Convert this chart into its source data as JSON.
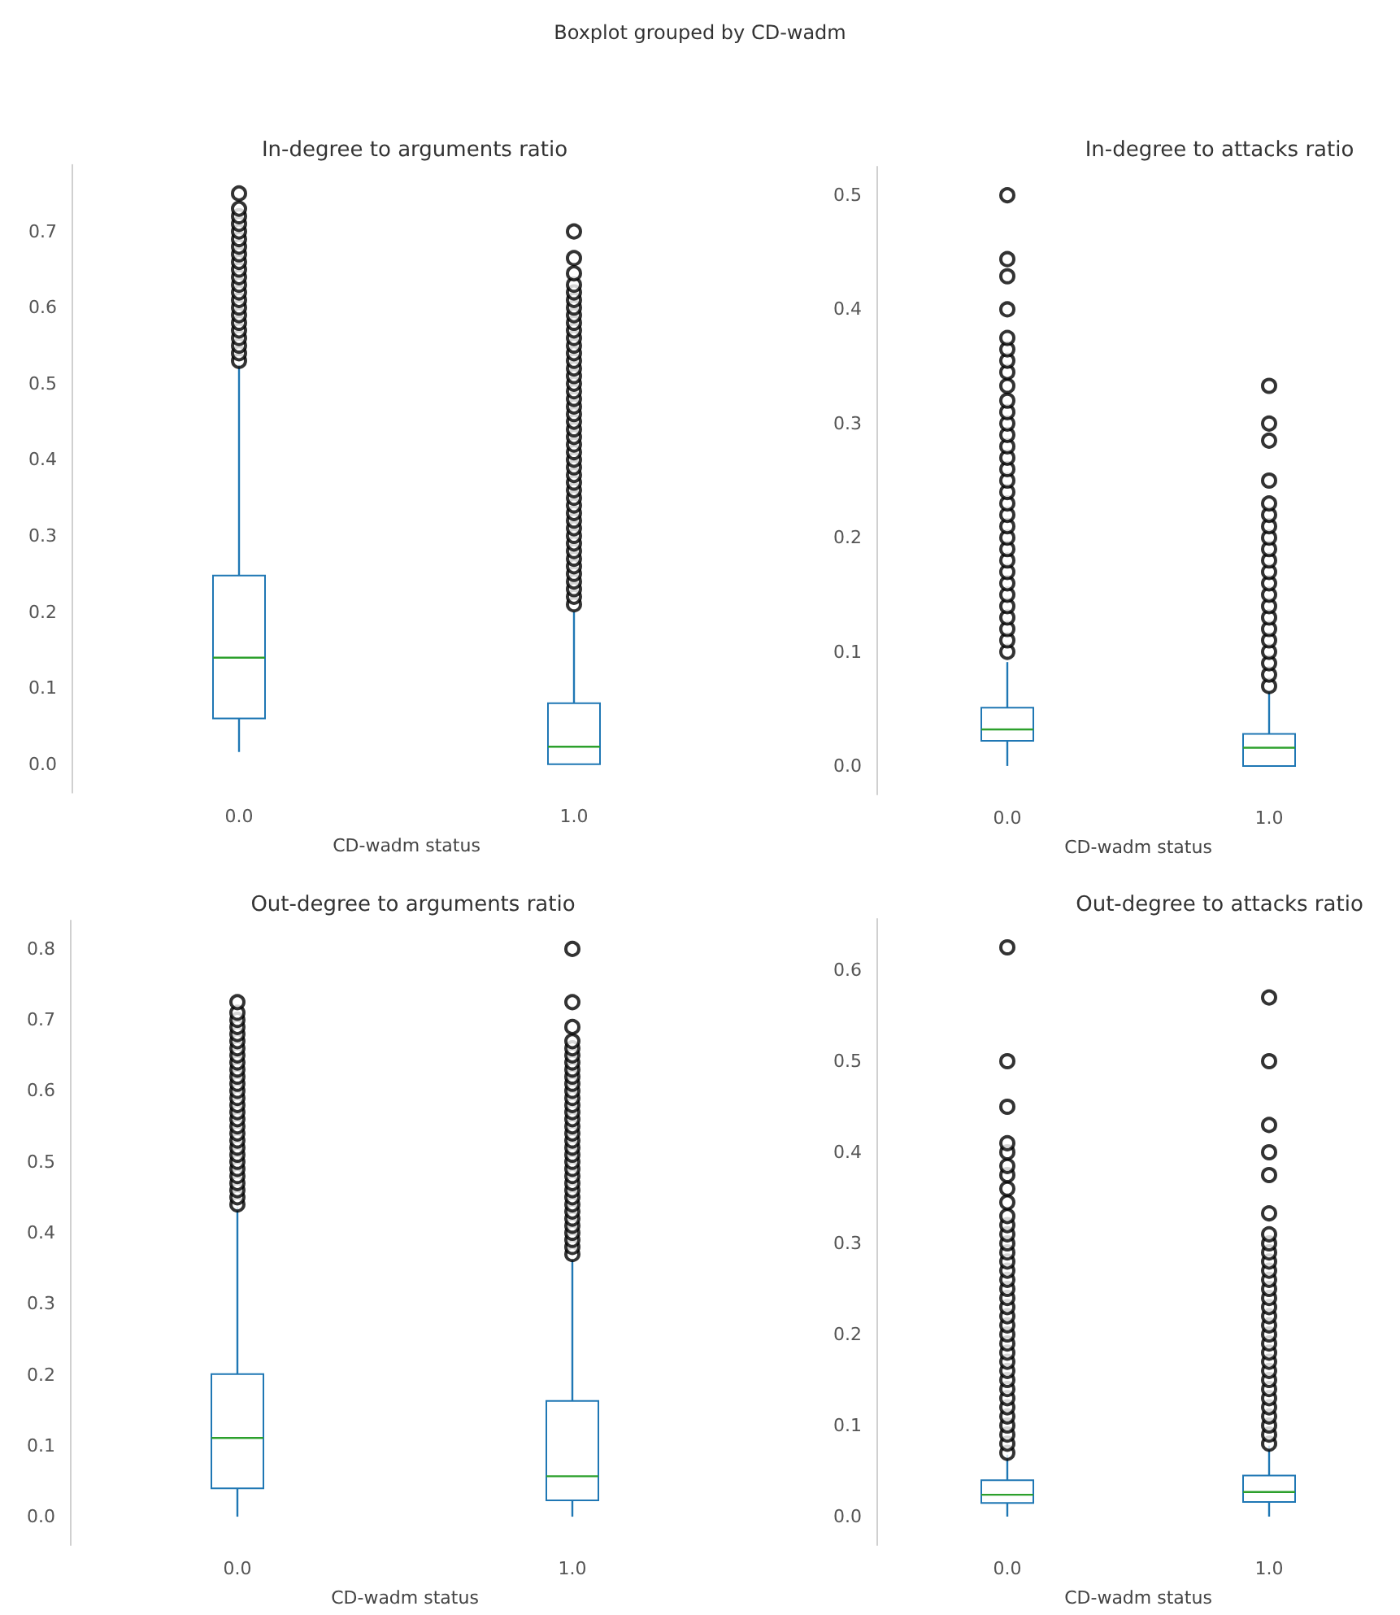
{
  "chart_data": [
    {
      "type": "other",
      "title": "Boxplot grouped by CD-wadm"
    },
    {
      "type": "box",
      "title": "In-degree to arguments ratio",
      "xlabel": "CD-wadm status",
      "categories": [
        "0.0",
        "1.0"
      ],
      "ylim": [
        -0.0375,
        0.7875
      ],
      "yticks": [
        {
          "value": 0,
          "label": "0.0"
        },
        {
          "value": 0.1,
          "label": "0.1"
        },
        {
          "value": 0.2,
          "label": "0.2"
        },
        {
          "value": 0.3,
          "label": "0.3"
        },
        {
          "value": 0.4,
          "label": "0.4"
        },
        {
          "value": 0.5,
          "label": "0.5"
        },
        {
          "value": 0.6,
          "label": "0.6"
        },
        {
          "value": 0.7,
          "label": "0.7"
        }
      ],
      "grid": false,
      "series": [
        {
          "color": "#1f77b4",
          "boxes": [
            {
              "low": 0.016,
              "q1": 0.06,
              "median": 0.14,
              "q3": 0.248,
              "high": 0.525,
              "outliers": [
                0.53,
                0.54,
                0.55,
                0.56,
                0.57,
                0.58,
                0.59,
                0.6,
                0.61,
                0.62,
                0.63,
                0.64,
                0.65,
                0.66,
                0.67,
                0.68,
                0.69,
                0.7,
                0.71,
                0.72,
                0.73,
                0.75
              ]
            },
            {
              "low": 0,
              "q1": 0,
              "median": 0.023,
              "q3": 0.08,
              "high": 0.2,
              "outliers": [
                0.21,
                0.22,
                0.23,
                0.24,
                0.25,
                0.26,
                0.27,
                0.28,
                0.29,
                0.3,
                0.31,
                0.32,
                0.33,
                0.34,
                0.35,
                0.36,
                0.37,
                0.38,
                0.39,
                0.4,
                0.41,
                0.42,
                0.43,
                0.44,
                0.45,
                0.46,
                0.47,
                0.48,
                0.49,
                0.5,
                0.51,
                0.52,
                0.53,
                0.54,
                0.55,
                0.56,
                0.57,
                0.58,
                0.59,
                0.6,
                0.61,
                0.62,
                0.63,
                0.645,
                0.665,
                0.7
              ]
            }
          ]
        }
      ]
    },
    {
      "type": "box",
      "title": "In-degree to attacks ratio",
      "xlabel": "CD-wadm status",
      "categories": [
        "0.0",
        "1.0"
      ],
      "ylim": [
        -0.025,
        0.525
      ],
      "yticks": [
        {
          "value": 0,
          "label": "0.0"
        },
        {
          "value": 0.1,
          "label": "0.1"
        },
        {
          "value": 0.2,
          "label": "0.2"
        },
        {
          "value": 0.3,
          "label": "0.3"
        },
        {
          "value": 0.4,
          "label": "0.4"
        },
        {
          "value": 0.5,
          "label": "0.5"
        }
      ],
      "grid": false,
      "series": [
        {
          "color": "#1f77b4",
          "boxes": [
            {
              "low": 0,
              "q1": 0.022,
              "median": 0.032,
              "q3": 0.051,
              "high": 0.091,
              "outliers": [
                0.1,
                0.11,
                0.12,
                0.13,
                0.14,
                0.15,
                0.16,
                0.17,
                0.18,
                0.19,
                0.2,
                0.21,
                0.22,
                0.23,
                0.24,
                0.25,
                0.26,
                0.27,
                0.28,
                0.29,
                0.3,
                0.31,
                0.32,
                0.333,
                0.345,
                0.355,
                0.365,
                0.375,
                0.4,
                0.429,
                0.444,
                0.5
              ]
            },
            {
              "low": 0,
              "q1": 0,
              "median": 0.016,
              "q3": 0.028,
              "high": 0.066,
              "outliers": [
                0.07,
                0.08,
                0.09,
                0.1,
                0.11,
                0.12,
                0.13,
                0.14,
                0.15,
                0.16,
                0.17,
                0.18,
                0.19,
                0.2,
                0.21,
                0.22,
                0.23,
                0.25,
                0.285,
                0.3,
                0.333
              ]
            }
          ]
        }
      ]
    },
    {
      "type": "box",
      "title": "Out-degree to arguments ratio",
      "xlabel": "CD-wadm status",
      "categories": [
        "0.0",
        "1.0"
      ],
      "ylim": [
        -0.04,
        0.84
      ],
      "yticks": [
        {
          "value": 0,
          "label": "0.0"
        },
        {
          "value": 0.1,
          "label": "0.1"
        },
        {
          "value": 0.2,
          "label": "0.2"
        },
        {
          "value": 0.3,
          "label": "0.3"
        },
        {
          "value": 0.4,
          "label": "0.4"
        },
        {
          "value": 0.5,
          "label": "0.5"
        },
        {
          "value": 0.6,
          "label": "0.6"
        },
        {
          "value": 0.7,
          "label": "0.7"
        },
        {
          "value": 0.8,
          "label": "0.8"
        }
      ],
      "grid": false,
      "series": [
        {
          "color": "#1f77b4",
          "boxes": [
            {
              "low": 0,
              "q1": 0.04,
              "median": 0.111,
              "q3": 0.201,
              "high": 0.436,
              "outliers": [
                0.44,
                0.45,
                0.46,
                0.47,
                0.48,
                0.49,
                0.5,
                0.51,
                0.52,
                0.53,
                0.54,
                0.55,
                0.56,
                0.57,
                0.58,
                0.59,
                0.6,
                0.61,
                0.62,
                0.63,
                0.64,
                0.65,
                0.66,
                0.67,
                0.68,
                0.69,
                0.7,
                0.71,
                0.725
              ]
            },
            {
              "low": 0,
              "q1": 0.023,
              "median": 0.057,
              "q3": 0.163,
              "high": 0.362,
              "outliers": [
                0.37,
                0.38,
                0.39,
                0.4,
                0.41,
                0.42,
                0.43,
                0.44,
                0.45,
                0.46,
                0.47,
                0.48,
                0.49,
                0.5,
                0.51,
                0.52,
                0.53,
                0.54,
                0.55,
                0.56,
                0.57,
                0.58,
                0.59,
                0.6,
                0.61,
                0.62,
                0.63,
                0.64,
                0.65,
                0.66,
                0.67,
                0.69,
                0.725,
                0.8
              ]
            }
          ]
        }
      ]
    },
    {
      "type": "box",
      "title": "Out-degree to attacks ratio",
      "xlabel": "CD-wadm status",
      "categories": [
        "0.0",
        "1.0"
      ],
      "ylim": [
        -0.03125,
        0.65625
      ],
      "yticks": [
        {
          "value": 0,
          "label": "0.0"
        },
        {
          "value": 0.1,
          "label": "0.1"
        },
        {
          "value": 0.2,
          "label": "0.2"
        },
        {
          "value": 0.3,
          "label": "0.3"
        },
        {
          "value": 0.4,
          "label": "0.4"
        },
        {
          "value": 0.5,
          "label": "0.5"
        },
        {
          "value": 0.6,
          "label": "0.6"
        }
      ],
      "grid": false,
      "series": [
        {
          "color": "#1f77b4",
          "boxes": [
            {
              "low": 0,
              "q1": 0.015,
              "median": 0.024,
              "q3": 0.04,
              "high": 0.068,
              "outliers": [
                0.07,
                0.08,
                0.09,
                0.1,
                0.11,
                0.12,
                0.13,
                0.14,
                0.15,
                0.16,
                0.17,
                0.18,
                0.19,
                0.2,
                0.21,
                0.22,
                0.23,
                0.24,
                0.25,
                0.26,
                0.27,
                0.28,
                0.29,
                0.3,
                0.31,
                0.32,
                0.33,
                0.345,
                0.36,
                0.375,
                0.385,
                0.4,
                0.41,
                0.45,
                0.5,
                0.625
              ]
            },
            {
              "low": 0,
              "q1": 0.016,
              "median": 0.027,
              "q3": 0.045,
              "high": 0.078,
              "outliers": [
                0.08,
                0.09,
                0.1,
                0.11,
                0.12,
                0.13,
                0.14,
                0.15,
                0.16,
                0.17,
                0.18,
                0.19,
                0.2,
                0.21,
                0.22,
                0.23,
                0.24,
                0.25,
                0.26,
                0.27,
                0.28,
                0.29,
                0.3,
                0.31,
                0.333,
                0.375,
                0.4,
                0.43,
                0.5,
                0.57
              ]
            }
          ]
        }
      ]
    }
  ]
}
